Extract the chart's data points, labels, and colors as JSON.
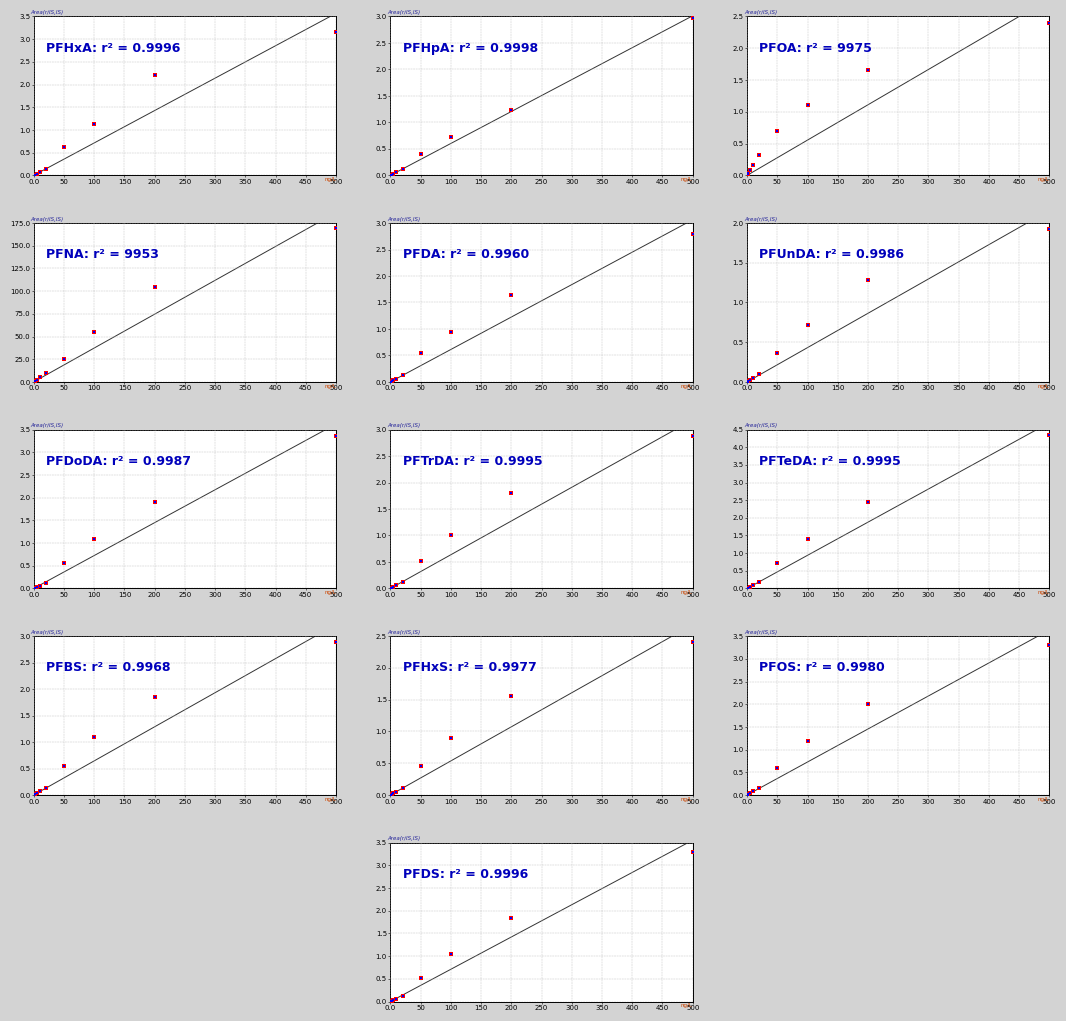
{
  "panels": [
    {
      "name": "PFHxA",
      "r2": "0.9996",
      "x_max": 500,
      "y_max": 3.5,
      "y_ticks_step": 0.5,
      "points_x": [
        1,
        2,
        5,
        10,
        20,
        50,
        100,
        200,
        500
      ],
      "points_y": [
        0.005,
        0.01,
        0.04,
        0.07,
        0.14,
        0.63,
        1.13,
        2.2,
        3.15
      ],
      "row": 0,
      "col": 0
    },
    {
      "name": "PFHpA",
      "r2": "0.9998",
      "x_max": 500,
      "y_max": 3.0,
      "y_ticks_step": 0.5,
      "points_x": [
        1,
        2,
        5,
        10,
        20,
        50,
        100,
        200,
        500
      ],
      "points_y": [
        0.005,
        0.01,
        0.03,
        0.07,
        0.12,
        0.4,
        0.72,
        1.23,
        2.97
      ],
      "row": 0,
      "col": 1
    },
    {
      "name": "PFOA",
      "r2": "9975",
      "x_max": 500,
      "y_max": 2.5,
      "y_ticks_step": 0.5,
      "points_x": [
        1,
        2,
        5,
        10,
        20,
        50,
        100,
        200,
        500
      ],
      "points_y": [
        0.02,
        0.04,
        0.08,
        0.16,
        0.32,
        0.7,
        1.1,
        1.65,
        2.4
      ],
      "row": 0,
      "col": 2
    },
    {
      "name": "PFNA",
      "r2": "9953",
      "x_max": 500,
      "y_max": 175.0,
      "y_ticks_step": 25.0,
      "points_x": [
        1,
        2,
        5,
        10,
        20,
        50,
        100,
        200,
        500
      ],
      "points_y": [
        0.5,
        1.0,
        2.5,
        5.0,
        10.0,
        25.0,
        55.0,
        105.0,
        170.0
      ],
      "row": 1,
      "col": 0
    },
    {
      "name": "PFDA",
      "r2": "0.9960",
      "x_max": 500,
      "y_max": 3.0,
      "y_ticks_step": 0.5,
      "points_x": [
        1,
        2,
        5,
        10,
        20,
        50,
        100,
        200,
        500
      ],
      "points_y": [
        0.005,
        0.01,
        0.03,
        0.06,
        0.13,
        0.55,
        0.95,
        1.65,
        2.8
      ],
      "row": 1,
      "col": 1
    },
    {
      "name": "PFUnDA",
      "r2": "0.9986",
      "x_max": 500,
      "y_max": 2.0,
      "y_ticks_step": 0.5,
      "points_x": [
        1,
        2,
        5,
        10,
        20,
        50,
        100,
        200,
        500
      ],
      "points_y": [
        0.005,
        0.01,
        0.02,
        0.05,
        0.1,
        0.37,
        0.72,
        1.28,
        1.92
      ],
      "row": 1,
      "col": 2
    },
    {
      "name": "PFDoDA",
      "r2": "0.9987",
      "x_max": 500,
      "y_max": 3.5,
      "y_ticks_step": 0.5,
      "points_x": [
        1,
        2,
        5,
        10,
        20,
        50,
        100,
        200,
        500
      ],
      "points_y": [
        0.005,
        0.01,
        0.03,
        0.06,
        0.13,
        0.55,
        1.1,
        1.9,
        3.35
      ],
      "row": 2,
      "col": 0
    },
    {
      "name": "PFTrDA",
      "r2": "0.9995",
      "x_max": 500,
      "y_max": 3.0,
      "y_ticks_step": 0.5,
      "points_x": [
        1,
        2,
        5,
        10,
        20,
        50,
        100,
        200,
        500
      ],
      "points_y": [
        0.005,
        0.01,
        0.03,
        0.06,
        0.13,
        0.52,
        1.0,
        1.8,
        2.88
      ],
      "row": 2,
      "col": 1
    },
    {
      "name": "PFTeDA",
      "r2": "0.9995",
      "x_max": 500,
      "y_max": 4.5,
      "y_ticks_step": 0.5,
      "points_x": [
        1,
        2,
        5,
        10,
        20,
        50,
        100,
        200,
        500
      ],
      "points_y": [
        0.01,
        0.02,
        0.04,
        0.09,
        0.17,
        0.72,
        1.4,
        2.45,
        4.35
      ],
      "row": 2,
      "col": 2
    },
    {
      "name": "PFBS",
      "r2": "0.9968",
      "x_max": 500,
      "y_max": 3.0,
      "y_ticks_step": 0.5,
      "points_x": [
        1,
        2,
        5,
        10,
        20,
        50,
        100,
        200,
        500
      ],
      "points_y": [
        0.005,
        0.012,
        0.03,
        0.07,
        0.14,
        0.55,
        1.1,
        1.85,
        2.88
      ],
      "row": 3,
      "col": 0
    },
    {
      "name": "PFHxS",
      "r2": "0.9977",
      "x_max": 500,
      "y_max": 2.5,
      "y_ticks_step": 0.5,
      "points_x": [
        1,
        2,
        5,
        10,
        20,
        50,
        100,
        200,
        500
      ],
      "points_y": [
        0.005,
        0.01,
        0.025,
        0.05,
        0.11,
        0.45,
        0.9,
        1.55,
        2.4
      ],
      "row": 3,
      "col": 1
    },
    {
      "name": "PFOS",
      "r2": "0.9980",
      "x_max": 500,
      "y_max": 3.5,
      "y_ticks_step": 0.5,
      "points_x": [
        1,
        2,
        5,
        10,
        20,
        50,
        100,
        200,
        500
      ],
      "points_y": [
        0.01,
        0.02,
        0.04,
        0.08,
        0.16,
        0.6,
        1.2,
        2.0,
        3.3
      ],
      "row": 3,
      "col": 2
    },
    {
      "name": "PFDS",
      "r2": "0.9996",
      "x_max": 500,
      "y_max": 3.5,
      "y_ticks_step": 0.5,
      "points_x": [
        1,
        2,
        5,
        10,
        20,
        50,
        100,
        200,
        500
      ],
      "points_y": [
        0.005,
        0.01,
        0.03,
        0.06,
        0.13,
        0.52,
        1.05,
        1.85,
        3.3
      ],
      "row": 4,
      "col": 1
    }
  ],
  "label_color": "#0000BB",
  "point_color_outer": "#FF0000",
  "point_color_inner": "#0000FF",
  "line_color": "#333333",
  "bg_color": "#FFFFFF",
  "outer_bg": "#D3D3D3",
  "grid_color": "#BBBBBB",
  "label_fontsize": 9,
  "tick_fontsize": 5,
  "axis_label_fontsize": 4
}
